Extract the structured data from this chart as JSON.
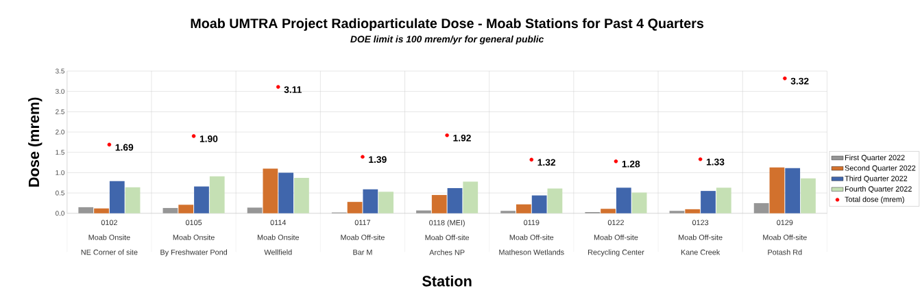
{
  "chart_data": {
    "type": "bar",
    "title": "Moab UMTRA Project Radioparticulate Dose - Moab Stations for Past 4 Quarters",
    "subtitle": "DOE limit is 100 mrem/yr for general public",
    "xlabel": "Station",
    "ylabel": "Dose (mrem)",
    "categories": [
      "0102\nMoab Onsite\nNE Corner of site",
      "0105\nMoab Onsite\nBy Freshwater Pond",
      "0114\nMoab Onsite\nWellfield",
      "0117\nMoab Off-site\nBar M",
      "0118 (MEI)\nMoab Off-site\nArches NP",
      "0119\nMoab Off-site\nMatheson Wetlands",
      "0122\nMoab Off-site\nRecycling Center",
      "0123\nMoab Off-site\nKane Creek",
      "0129\nMoab Off-site\nPotash Rd"
    ],
    "series": [
      {
        "name": "First Quarter 2022",
        "color": "#969696",
        "values": [
          0.15,
          0.13,
          0.14,
          0.02,
          0.07,
          0.06,
          0.03,
          0.06,
          0.25
        ]
      },
      {
        "name": "Second Quarter 2022",
        "color": "#d2712d",
        "values": [
          0.12,
          0.21,
          1.1,
          0.28,
          0.45,
          0.22,
          0.11,
          0.1,
          1.13
        ]
      },
      {
        "name": "Third Quarter 2022",
        "color": "#4066ac",
        "values": [
          0.79,
          0.66,
          1.0,
          0.59,
          0.62,
          0.44,
          0.63,
          0.55,
          1.11
        ]
      },
      {
        "name": "Fourth Quarter 2022",
        "color": "#c5e0b4",
        "values": [
          0.64,
          0.91,
          0.87,
          0.53,
          0.78,
          0.61,
          0.51,
          0.63,
          0.86
        ]
      },
      {
        "name": "Total dose (mrem)",
        "type": "scatter",
        "marker": "circle",
        "color": "#ff0000",
        "values": [
          1.69,
          1.9,
          3.11,
          1.39,
          1.92,
          1.32,
          1.28,
          1.33,
          3.32
        ],
        "value_labels": [
          "1.69",
          "1.90",
          "3.11",
          "1.39",
          "1.92",
          "1.32",
          "1.28",
          "1.33",
          "3.32"
        ]
      }
    ],
    "ylim": [
      0,
      3.5
    ],
    "yticks": [
      {
        "value": 0,
        "label": "0.0"
      },
      {
        "value": 0.5,
        "label": "0.5"
      },
      {
        "value": 1,
        "label": "1.0"
      },
      {
        "value": 1.5,
        "label": "1.5"
      },
      {
        "value": 2,
        "label": "2.0"
      },
      {
        "value": 2.5,
        "label": "2.5"
      },
      {
        "value": 3,
        "label": "3.0"
      },
      {
        "value": 3.5,
        "label": "3.5"
      }
    ],
    "grid": true,
    "legend": "right"
  }
}
